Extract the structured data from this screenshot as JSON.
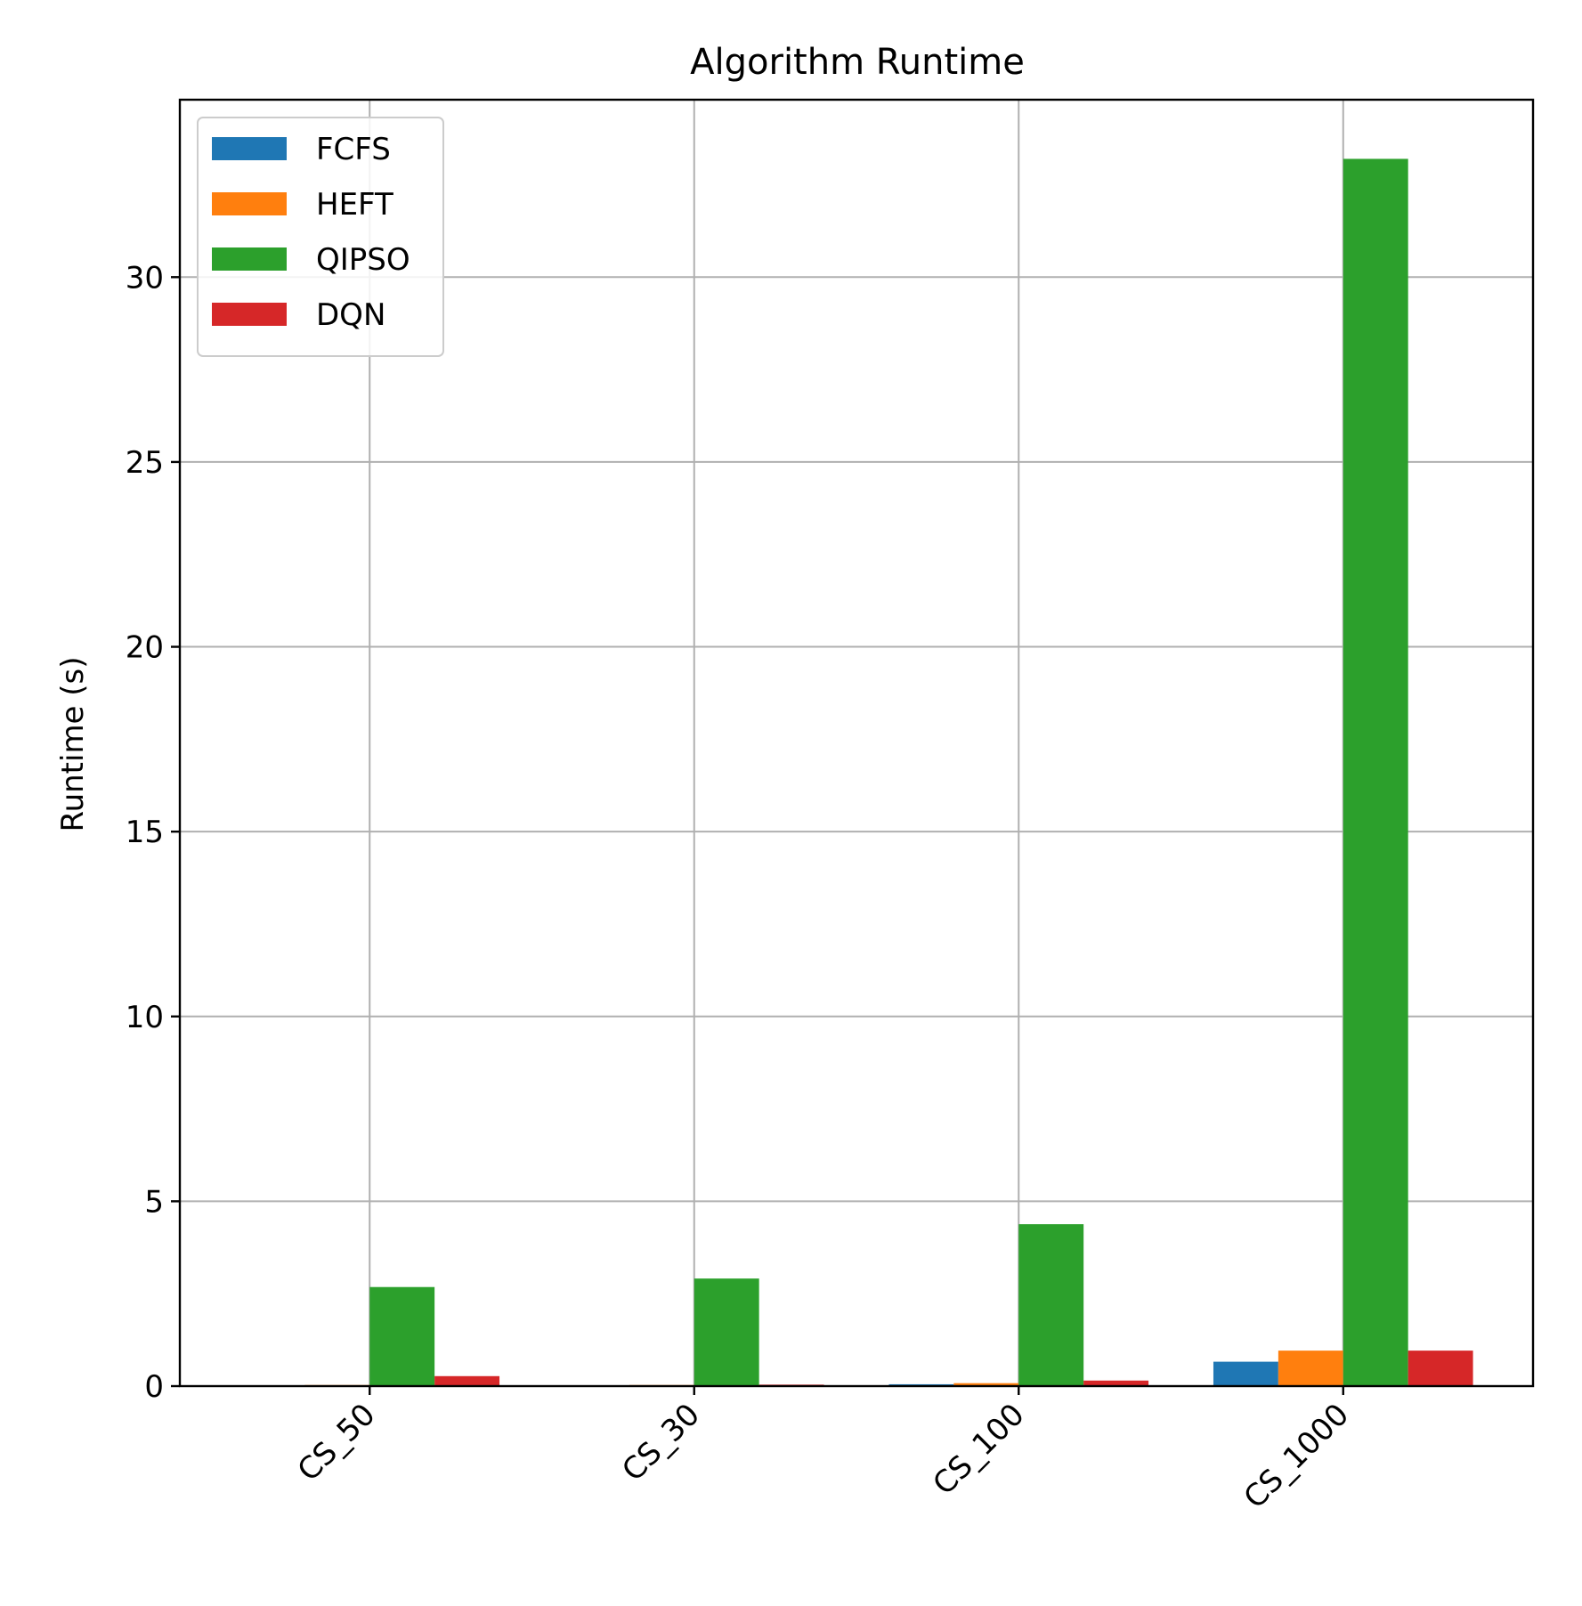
{
  "chart_data": {
    "type": "bar",
    "title": "Algorithm Runtime",
    "xlabel": "",
    "ylabel": "Runtime (s)",
    "categories": [
      "CS_50",
      "CS_30",
      "CS_100",
      "CS_1000"
    ],
    "series": [
      {
        "name": "FCFS",
        "color": "#1f77b4",
        "values": [
          0.02,
          0.02,
          0.05,
          0.66
        ]
      },
      {
        "name": "HEFT",
        "color": "#ff7f0e",
        "values": [
          0.03,
          0.03,
          0.08,
          0.96
        ]
      },
      {
        "name": "QIPSO",
        "color": "#2ca02c",
        "values": [
          2.68,
          2.91,
          4.38,
          33.2
        ]
      },
      {
        "name": "DQN",
        "color": "#d62728",
        "values": [
          0.27,
          0.04,
          0.15,
          0.96
        ]
      }
    ],
    "ylim": [
      0,
      34.8
    ],
    "yticks": [
      0,
      5,
      10,
      15,
      20,
      25,
      30
    ],
    "ytick_labels": [
      "0",
      "5",
      "10",
      "15",
      "20",
      "25",
      "30"
    ],
    "grid": true,
    "legend_position": "top-left",
    "xtick_rotation_deg": -45
  }
}
